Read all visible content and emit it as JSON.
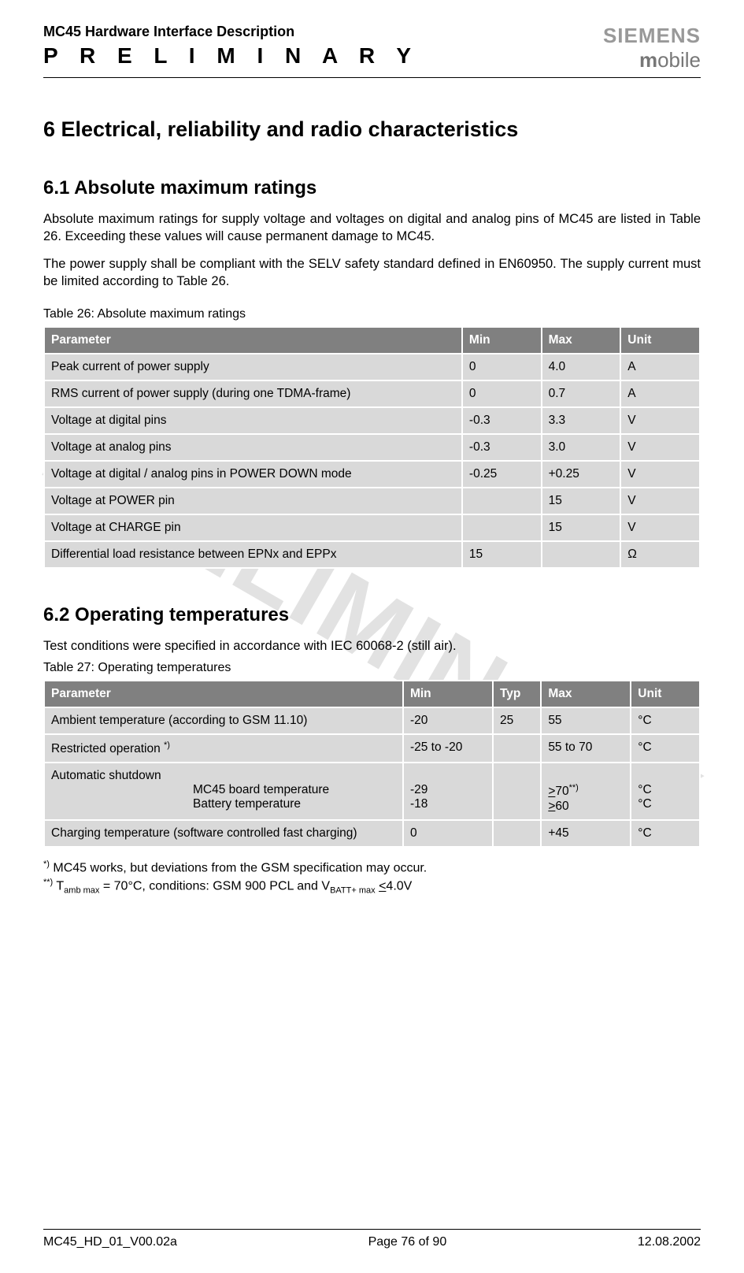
{
  "header": {
    "doc_title": "MC45 Hardware Interface Description",
    "preliminary": "P R E L I M I N A R Y",
    "brand_top": "SIEMENS",
    "brand_bottom_m": "m",
    "brand_bottom_rest": "obile"
  },
  "watermark": "PRELIMINARY",
  "section": {
    "h1": "6   Electrical, reliability and radio characteristics",
    "h2_1": "6.1  Absolute maximum ratings",
    "p1": "Absolute maximum ratings for supply voltage and voltages on digital and analog pins of MC45 are listed in Table 26. Exceeding these values will cause permanent damage to MC45.",
    "p2": "The power supply shall be compliant with the SELV safety standard defined in EN60950. The supply current must be limited according to Table 26.",
    "caption1": "Table 26: Absolute maximum ratings",
    "h2_2": "6.2  Operating temperatures",
    "p3": "Test conditions were specified in accordance with IEC 60068-2 (still air).",
    "caption2": "Table 27: Operating temperatures"
  },
  "table1": {
    "cols": [
      "Parameter",
      "Min",
      "Max",
      "Unit"
    ],
    "rows": [
      [
        "Peak current of power supply",
        "0",
        "4.0",
        "A"
      ],
      [
        "RMS current of power supply (during one TDMA-frame)",
        "0",
        "0.7",
        "A"
      ],
      [
        "Voltage at digital pins",
        "-0.3",
        "3.3",
        "V"
      ],
      [
        "Voltage at analog pins",
        "-0.3",
        "3.0",
        "V"
      ],
      [
        "Voltage at digital / analog pins in POWER DOWN mode",
        "-0.25",
        "+0.25",
        "V"
      ],
      [
        "Voltage at POWER pin",
        "",
        "15",
        "V"
      ],
      [
        "Voltage at CHARGE pin",
        "",
        "15",
        "V"
      ],
      [
        "Differential load resistance between EPNx and EPPx",
        "15",
        "",
        "Ω"
      ]
    ]
  },
  "table2": {
    "cols": [
      "Parameter",
      "Min",
      "Typ",
      "Max",
      "Unit"
    ],
    "rows": [
      {
        "p": "Ambient temperature (according to GSM 11.10)",
        "min": "-20",
        "typ": "25",
        "max": "55",
        "unit": "°C"
      },
      {
        "p": "Restricted operation ",
        "p_sup": "*)",
        "min": "-25 to -20",
        "typ": "",
        "max": "55 to 70",
        "unit": "°C"
      },
      {
        "p_line1": "Automatic shutdown",
        "p_line2": "MC45 board temperature",
        "p_line3": "Battery temperature",
        "min_line1": "",
        "min_line2": "-29",
        "min_line3": "-18",
        "typ": "",
        "max_line1": "",
        "max_line2_pre": ">",
        "max_line2_u": "",
        "max_line2": "70",
        "max_line2_sup": "**)",
        "max_line3_pre": ">",
        "max_line3": "60",
        "unit_line1": "",
        "unit_line2": "°C",
        "unit_line3": "°C"
      },
      {
        "p": "Charging temperature (software controlled fast charging)",
        "min": "0",
        "typ": "",
        "max": "+45",
        "unit": "°C"
      }
    ]
  },
  "footnotes": {
    "f1_sup": "*)",
    "f1": "  MC45 works, but deviations from the GSM specification may occur.",
    "f2_sup": "**)",
    "f2_pre": " T",
    "f2_sub": "amb max",
    "f2_mid": " = 70°C, conditions: GSM 900 PCL and V",
    "f2_sub2": "BATT+  max",
    "f2_post": " <4.0V"
  },
  "footer": {
    "left": "MC45_HD_01_V00.02a",
    "center": "Page 76 of 90",
    "right": "12.08.2002"
  },
  "colors": {
    "th_bg": "#808080",
    "th_fg": "#ffffff",
    "td_bg": "#d9d9d9",
    "watermark": "#e2e2e2",
    "brand": "#999999"
  }
}
